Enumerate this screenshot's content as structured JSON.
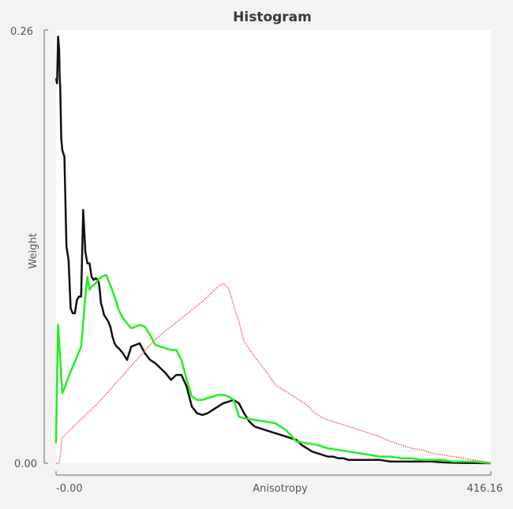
{
  "chart_data": {
    "type": "line",
    "title": "Histogram",
    "xlabel": "Anisotropy",
    "ylabel": "Weight",
    "xlim": [
      0,
      416.16
    ],
    "ylim": [
      0,
      0.26
    ],
    "x_tick_labels": [
      "-0.00",
      "416.16"
    ],
    "y_tick_labels": [
      "0.00",
      "0.26"
    ],
    "grid": false,
    "legend": "none",
    "series": [
      {
        "color": "#111111",
        "style": "solid",
        "x": [
          0.0,
          1.0,
          2.0,
          3.0,
          3.5,
          4.0,
          5.0,
          6.0,
          8.0,
          10.0,
          12.0,
          14.0,
          16.0,
          18.0,
          20.0,
          22.0,
          24.0,
          26.0,
          28.0,
          30.0,
          32.0,
          34.0,
          36.0,
          38.0,
          40.0,
          41.0,
          42.0,
          43.0,
          44.0,
          46.0,
          48.0,
          50.0,
          52.0,
          54.0,
          56.0,
          58.0,
          60.0,
          64.0,
          68.0,
          72.0,
          76.0,
          80.0,
          85.0,
          90.0,
          95.0,
          100.0,
          105.0,
          110.0,
          115.0,
          120.0,
          125.0,
          130.0,
          135.0,
          140.0,
          145.0,
          150.0,
          155.0,
          160.0,
          165.0,
          170.0,
          175.0,
          180.0,
          185.0,
          190.0,
          195.0,
          200.0,
          205.0,
          210.0,
          215.0,
          220.0,
          225.0,
          230.0,
          235.0,
          240.0,
          245.0,
          250.0,
          255.0,
          260.0,
          265.0,
          270.0,
          275.0,
          280.0,
          290.0,
          300.0,
          310.0,
          320.0,
          330.0,
          340.0,
          350.0,
          360.0,
          370.0,
          380.0,
          390.0,
          400.0,
          416.16
        ],
        "y": [
          0.231,
          0.228,
          0.256,
          0.248,
          0.232,
          0.226,
          0.195,
          0.188,
          0.184,
          0.13,
          0.122,
          0.093,
          0.09,
          0.09,
          0.098,
          0.1,
          0.1,
          0.152,
          0.127,
          0.12,
          0.12,
          0.112,
          0.11,
          0.111,
          0.11,
          0.108,
          0.103,
          0.096,
          0.094,
          0.089,
          0.087,
          0.085,
          0.082,
          0.076,
          0.072,
          0.07,
          0.069,
          0.066,
          0.062,
          0.07,
          0.071,
          0.072,
          0.066,
          0.062,
          0.06,
          0.057,
          0.054,
          0.05,
          0.053,
          0.053,
          0.046,
          0.034,
          0.03,
          0.029,
          0.03,
          0.032,
          0.034,
          0.036,
          0.037,
          0.038,
          0.036,
          0.03,
          0.025,
          0.022,
          0.021,
          0.02,
          0.019,
          0.018,
          0.017,
          0.016,
          0.015,
          0.014,
          0.011,
          0.009,
          0.007,
          0.006,
          0.005,
          0.004,
          0.004,
          0.003,
          0.003,
          0.002,
          0.002,
          0.002,
          0.002,
          0.001,
          0.001,
          0.001,
          0.001,
          0.001,
          0.0005,
          0.0003,
          0.0002,
          0.0001,
          0.0
        ]
      },
      {
        "color": "#22ee22",
        "style": "solid",
        "x": [
          0.0,
          1.0,
          2.0,
          4.0,
          6.0,
          8.0,
          12.0,
          16.0,
          20.0,
          24.0,
          28.0,
          30.0,
          32.0,
          34.0,
          36.0,
          38.0,
          40.0,
          44.0,
          48.0,
          52.0,
          56.0,
          60.0,
          64.0,
          68.0,
          72.0,
          76.0,
          80.0,
          85.0,
          90.0,
          95.0,
          100.0,
          105.0,
          110.0,
          115.0,
          120.0,
          125.0,
          130.0,
          135.0,
          140.0,
          145.0,
          150.0,
          155.0,
          160.0,
          165.0,
          170.0,
          175.0,
          180.0,
          190.0,
          200.0,
          210.0,
          220.0,
          230.0,
          240.0,
          250.0,
          260.0,
          270.0,
          280.0,
          290.0,
          300.0,
          310.0,
          320.0,
          330.0,
          340.0,
          350.0,
          360.0,
          370.0,
          380.0,
          390.0,
          400.0,
          416.16
        ],
        "y": [
          0.012,
          0.05,
          0.083,
          0.062,
          0.042,
          0.045,
          0.052,
          0.058,
          0.064,
          0.07,
          0.1,
          0.112,
          0.104,
          0.106,
          0.107,
          0.108,
          0.11,
          0.112,
          0.113,
          0.107,
          0.1,
          0.092,
          0.087,
          0.084,
          0.081,
          0.082,
          0.083,
          0.082,
          0.077,
          0.071,
          0.07,
          0.069,
          0.068,
          0.068,
          0.062,
          0.05,
          0.04,
          0.038,
          0.038,
          0.039,
          0.04,
          0.041,
          0.041,
          0.04,
          0.038,
          0.028,
          0.027,
          0.026,
          0.025,
          0.024,
          0.02,
          0.013,
          0.012,
          0.011,
          0.009,
          0.008,
          0.007,
          0.006,
          0.005,
          0.004,
          0.004,
          0.003,
          0.003,
          0.002,
          0.002,
          0.002,
          0.001,
          0.001,
          0.001,
          0.0
        ]
      },
      {
        "color": "#ee5555",
        "style": "dotted",
        "x": [
          0.0,
          3.0,
          6.0,
          10.0,
          20.0,
          30.0,
          40.0,
          50.0,
          60.0,
          70.0,
          80.0,
          90.0,
          100.0,
          110.0,
          120.0,
          130.0,
          140.0,
          150.0,
          155.0,
          160.0,
          165.0,
          170.0,
          175.0,
          180.0,
          190.0,
          200.0,
          210.0,
          220.0,
          230.0,
          240.0,
          250.0,
          260.0,
          270.0,
          280.0,
          290.0,
          300.0,
          310.0,
          320.0,
          330.0,
          340.0,
          350.0,
          360.0,
          370.0,
          380.0,
          390.0,
          400.0,
          410.0,
          416.16
        ],
        "y": [
          0.0,
          0.0,
          0.015,
          0.018,
          0.024,
          0.03,
          0.036,
          0.043,
          0.05,
          0.057,
          0.064,
          0.071,
          0.077,
          0.082,
          0.087,
          0.092,
          0.097,
          0.103,
          0.106,
          0.108,
          0.105,
          0.095,
          0.085,
          0.073,
          0.064,
          0.056,
          0.047,
          0.043,
          0.039,
          0.035,
          0.029,
          0.026,
          0.024,
          0.022,
          0.02,
          0.018,
          0.016,
          0.013,
          0.011,
          0.009,
          0.008,
          0.006,
          0.005,
          0.004,
          0.003,
          0.002,
          0.001,
          0.0
        ]
      }
    ]
  }
}
